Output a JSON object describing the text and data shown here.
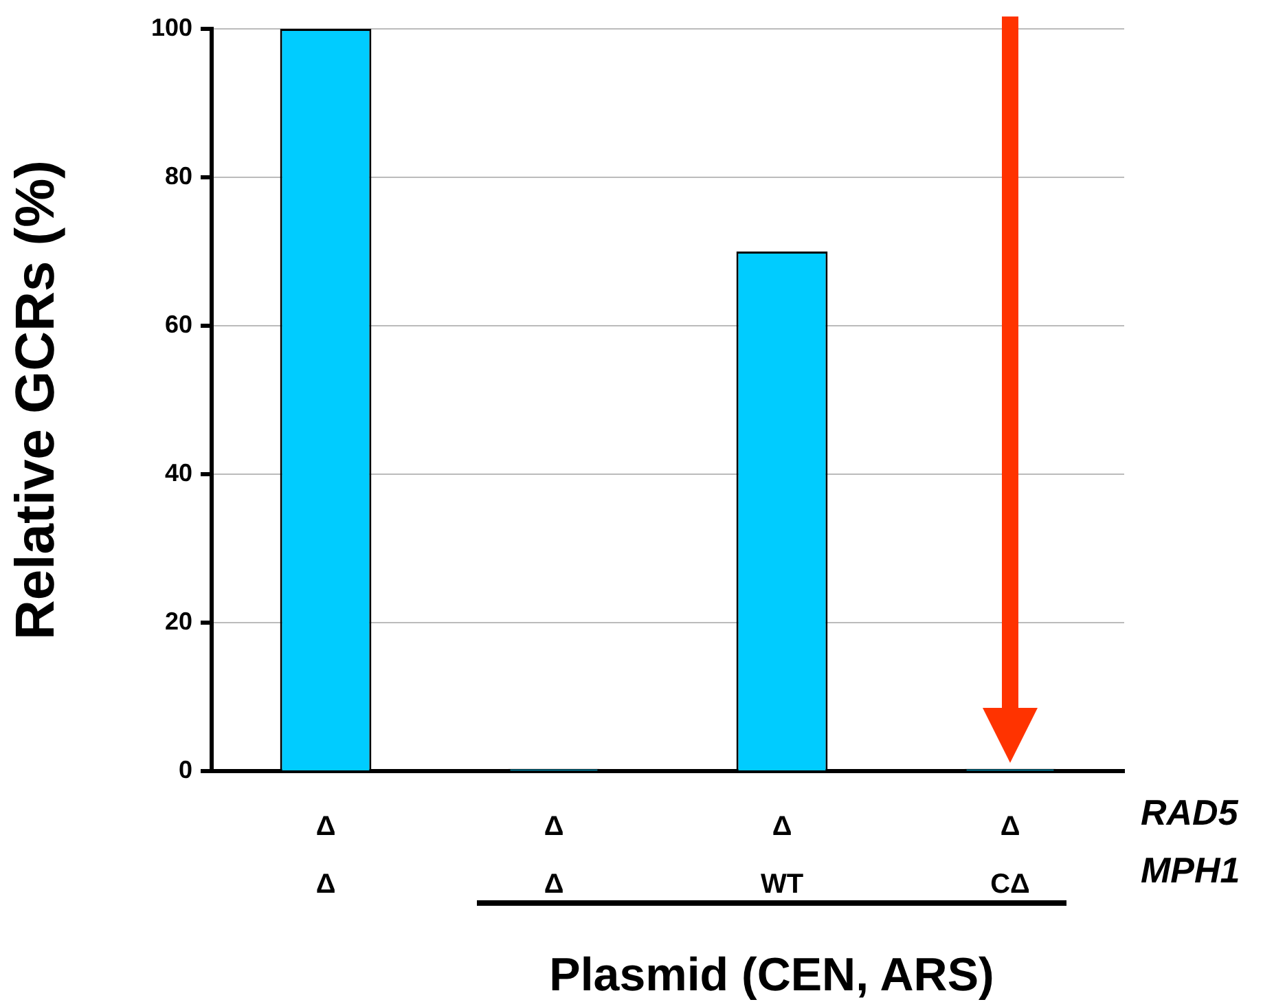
{
  "chart_data": {
    "type": "bar",
    "ylabel": "Relative GCRs (%)",
    "categories": [
      "Δ\nΔ",
      "Δ\nΔ",
      "Δ\nWT",
      "Δ\nCΔ"
    ],
    "values": [
      100,
      0.3,
      70,
      0.3
    ],
    "color": "#00ccff",
    "ylim": [
      0,
      100
    ],
    "yticks": [
      0,
      20,
      40,
      60,
      80,
      100
    ],
    "grid": "y",
    "annotations": [
      "RAD5",
      "MPH1",
      "Plasmid (CEN, ARS)"
    ]
  }
}
